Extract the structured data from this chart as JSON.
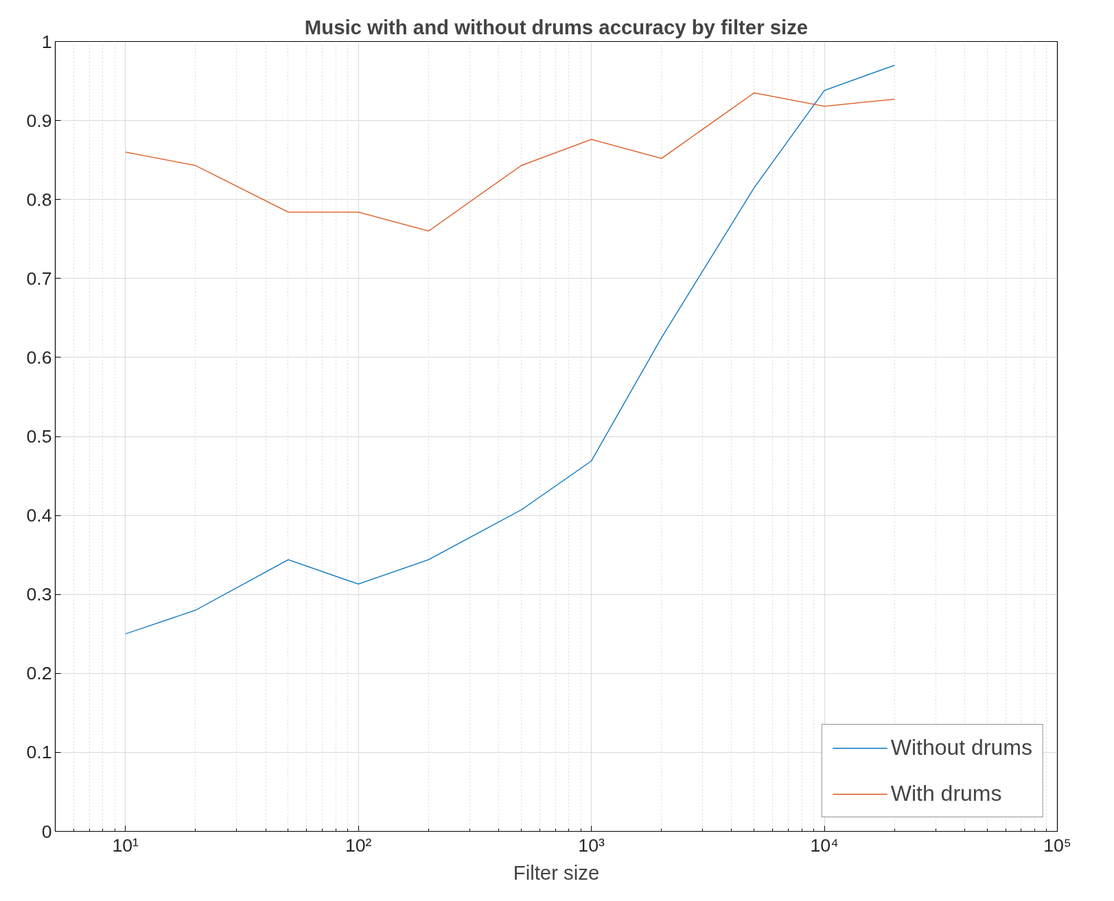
{
  "chart_data": {
    "type": "line",
    "title": "Music with and without drums accuracy by filter size",
    "xlabel": "Filter size",
    "x": [
      10,
      20,
      50,
      100,
      200,
      500,
      1000,
      2000,
      5000,
      10000,
      20000
    ],
    "series": [
      {
        "name": "Without drums",
        "color": "#0072bd",
        "values": [
          0.25,
          0.28,
          0.344,
          0.313,
          0.344,
          0.407,
          0.469,
          0.625,
          0.815,
          0.938,
          0.97
        ]
      },
      {
        "name": "With drums",
        "color": "#d95319",
        "values": [
          0.86,
          0.843,
          0.784,
          0.784,
          0.76,
          0.843,
          0.876,
          0.852,
          0.935,
          0.918,
          0.927
        ]
      }
    ],
    "log": "x",
    "xlim": [
      5,
      100000
    ],
    "xticks": [
      {
        "value": 10,
        "label": "10¹"
      },
      {
        "value": 100,
        "label": "10²"
      },
      {
        "value": 1000,
        "label": "10³"
      },
      {
        "value": 10000,
        "label": "10⁴"
      },
      {
        "value": 100000,
        "label": "10⁵"
      }
    ],
    "ylim": [
      0,
      1
    ],
    "yticks": [
      0,
      0.1,
      0.2,
      0.3,
      0.4,
      0.5,
      0.6,
      0.7,
      0.8,
      0.9,
      1
    ],
    "grid": true,
    "legend": "bottom right",
    "line_style": "solid",
    "marker": "none"
  }
}
